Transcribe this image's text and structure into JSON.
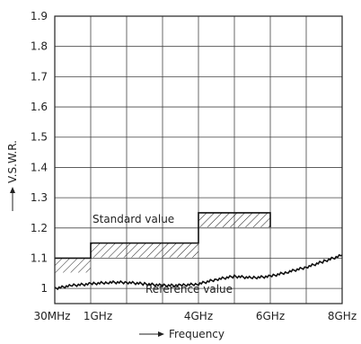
{
  "chart_data": {
    "type": "line",
    "title": "",
    "xlabel": "Frequency",
    "ylabel": "V.S.W.R.",
    "ylim": [
      0.95,
      1.9
    ],
    "grid": true,
    "x_categories": [
      "30MHz",
      "1GHz",
      "4GHz",
      "6GHz",
      "8GHz"
    ],
    "y_ticks": [
      1,
      1.1,
      1.2,
      1.3,
      1.4,
      1.5,
      1.6,
      1.7,
      1.8,
      1.9
    ],
    "y_tick_labels": [
      "1",
      "1.1",
      "1.2",
      "1.3",
      "1.4",
      "1.5",
      "1.6",
      "1.7",
      "1.8",
      "1.9"
    ],
    "series": [
      {
        "name": "Reference value",
        "x_ghz": [
          0.03,
          0.5,
          1.0,
          1.5,
          2.0,
          2.5,
          3.0,
          3.5,
          4.0,
          4.5,
          5.0,
          5.5,
          6.0,
          6.5,
          7.0,
          7.5,
          8.0
        ],
        "values": [
          1.0,
          1.01,
          1.015,
          1.02,
          1.02,
          1.015,
          1.01,
          1.01,
          1.015,
          1.03,
          1.04,
          1.035,
          1.04,
          1.055,
          1.07,
          1.09,
          1.11
        ]
      }
    ],
    "standard_limit": {
      "name": "Standard value",
      "steps": [
        {
          "x_start_ghz": 0.03,
          "x_end_ghz": 1.0,
          "value": 1.1
        },
        {
          "x_start_ghz": 1.0,
          "x_end_ghz": 4.0,
          "value": 1.15
        },
        {
          "x_start_ghz": 4.0,
          "x_end_ghz": 6.0,
          "value": 1.25
        }
      ]
    },
    "annotations": {
      "standard": "Standard value",
      "reference": "Reference value"
    }
  }
}
